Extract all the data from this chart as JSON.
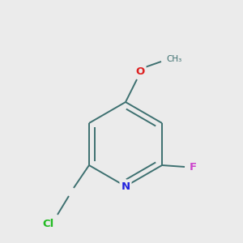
{
  "bg_color": "#ebebeb",
  "bond_color": "#3d7070",
  "atom_colors": {
    "N": "#2222dd",
    "O": "#dd2222",
    "F": "#cc44cc",
    "Cl": "#22bb22"
  },
  "figsize": [
    3.0,
    3.0
  ],
  "dpi": 100,
  "lw": 1.4
}
